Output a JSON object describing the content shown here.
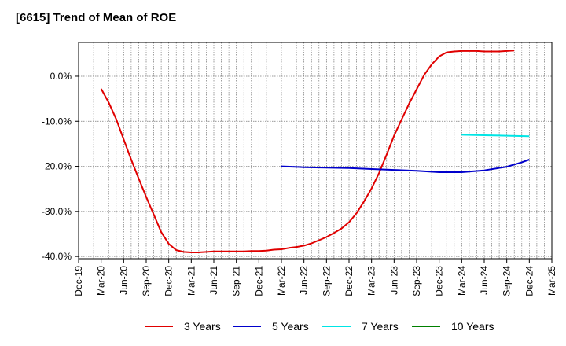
{
  "chart_data": {
    "type": "line",
    "title": "[6615]  Trend of Mean of ROE",
    "xlabel": "",
    "ylabel": "",
    "x_ticks": [
      "Dec-19",
      "Mar-20",
      "Jun-20",
      "Sep-20",
      "Dec-20",
      "Mar-21",
      "Jun-21",
      "Sep-21",
      "Dec-21",
      "Mar-22",
      "Jun-22",
      "Sep-22",
      "Dec-22",
      "Mar-23",
      "Jun-23",
      "Sep-23",
      "Dec-23",
      "Mar-24",
      "Jun-24",
      "Sep-24",
      "Dec-24",
      "Mar-25"
    ],
    "y_ticks": [
      "0.0%",
      "-10.0%",
      "-20.0%",
      "-30.0%",
      "-40.0%"
    ],
    "y_tick_values": [
      0,
      -10,
      -20,
      -30,
      -40
    ],
    "ylim": [
      -40.5,
      7.5
    ],
    "grid": true,
    "legend_position": "bottom",
    "series": [
      {
        "name": "3 Years",
        "color": "#e00000",
        "points": [
          [
            "Mar-20",
            -2.8
          ],
          [
            "Apr-20",
            -5.8
          ],
          [
            "May-20",
            -9.5
          ],
          [
            "Jun-20",
            -14.0
          ],
          [
            "Jul-20",
            -18.5
          ],
          [
            "Aug-20",
            -22.7
          ],
          [
            "Sep-20",
            -26.8
          ],
          [
            "Oct-20",
            -30.7
          ],
          [
            "Nov-20",
            -34.6
          ],
          [
            "Dec-20",
            -37.2
          ],
          [
            "Jan-21",
            -38.6
          ],
          [
            "Feb-21",
            -39.0
          ],
          [
            "Mar-21",
            -39.1
          ],
          [
            "Apr-21",
            -39.1
          ],
          [
            "May-21",
            -39.0
          ],
          [
            "Jun-21",
            -38.9
          ],
          [
            "Jul-21",
            -38.9
          ],
          [
            "Aug-21",
            -38.9
          ],
          [
            "Sep-21",
            -38.9
          ],
          [
            "Oct-21",
            -38.9
          ],
          [
            "Nov-21",
            -38.8
          ],
          [
            "Dec-21",
            -38.8
          ],
          [
            "Jan-22",
            -38.7
          ],
          [
            "Feb-22",
            -38.5
          ],
          [
            "Mar-22",
            -38.4
          ],
          [
            "Apr-22",
            -38.1
          ],
          [
            "May-22",
            -37.9
          ],
          [
            "Jun-22",
            -37.6
          ],
          [
            "Jul-22",
            -37.1
          ],
          [
            "Aug-22",
            -36.4
          ],
          [
            "Sep-22",
            -35.7
          ],
          [
            "Oct-22",
            -34.8
          ],
          [
            "Nov-22",
            -33.8
          ],
          [
            "Dec-22",
            -32.4
          ],
          [
            "Jan-23",
            -30.4
          ],
          [
            "Feb-23",
            -27.8
          ],
          [
            "Mar-23",
            -24.9
          ],
          [
            "Apr-23",
            -21.5
          ],
          [
            "May-23",
            -17.4
          ],
          [
            "Jun-23",
            -13.2
          ],
          [
            "Jul-23",
            -9.6
          ],
          [
            "Aug-23",
            -6.1
          ],
          [
            "Sep-23",
            -2.9
          ],
          [
            "Oct-23",
            0.3
          ],
          [
            "Nov-23",
            2.6
          ],
          [
            "Dec-23",
            4.4
          ],
          [
            "Jan-24",
            5.3
          ],
          [
            "Feb-24",
            5.5
          ],
          [
            "Mar-24",
            5.6
          ],
          [
            "Apr-24",
            5.6
          ],
          [
            "May-24",
            5.6
          ],
          [
            "Jun-24",
            5.5
          ],
          [
            "Jul-24",
            5.5
          ],
          [
            "Aug-24",
            5.5
          ],
          [
            "Sep-24",
            5.6
          ],
          [
            "Oct-24",
            5.7
          ]
        ]
      },
      {
        "name": "5 Years",
        "color": "#0000cc",
        "points": [
          [
            "Mar-22",
            -20.0
          ],
          [
            "Jun-22",
            -20.2
          ],
          [
            "Sep-22",
            -20.3
          ],
          [
            "Dec-22",
            -20.4
          ],
          [
            "Mar-23",
            -20.6
          ],
          [
            "Jun-23",
            -20.8
          ],
          [
            "Sep-23",
            -21.0
          ],
          [
            "Dec-23",
            -21.3
          ],
          [
            "Mar-24",
            -21.3
          ],
          [
            "Jun-24",
            -20.9
          ],
          [
            "Sep-24",
            -20.1
          ],
          [
            "Oct-24",
            -19.6
          ],
          [
            "Nov-24",
            -19.1
          ],
          [
            "Dec-24",
            -18.5
          ]
        ]
      },
      {
        "name": "7 Years",
        "color": "#00e5e5",
        "points": [
          [
            "Mar-24",
            -13.0
          ],
          [
            "Jun-24",
            -13.1
          ],
          [
            "Sep-24",
            -13.2
          ],
          [
            "Dec-24",
            -13.3
          ]
        ]
      },
      {
        "name": "10 Years",
        "color": "#008000",
        "points": []
      }
    ]
  }
}
